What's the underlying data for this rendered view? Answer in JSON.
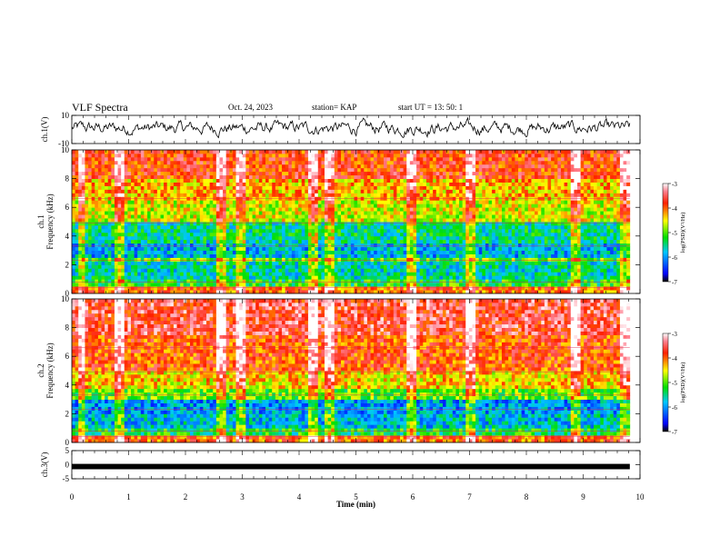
{
  "header": {
    "title": "VLF Spectra",
    "date": "Oct. 24, 2023",
    "station": "station= KAP",
    "start": "start  UT  =   13: 50: 1"
  },
  "chart_data": [
    {
      "type": "line",
      "panel": "ch1-waveform",
      "ylabel": "ch.1(V)",
      "ylim": [
        -10,
        10
      ],
      "yticks": [
        "10",
        "-10"
      ],
      "xlim": [
        0,
        10
      ],
      "x_end": 9.82,
      "series_note_values": [
        0,
        3,
        -2,
        4,
        -1,
        2,
        -3,
        1,
        5,
        -2,
        0,
        3,
        -4,
        2,
        1,
        -1,
        4,
        -3,
        2,
        0
      ],
      "color": "#000000"
    },
    {
      "type": "heatmap",
      "panel": "ch1-spectrogram",
      "ylabel": "ch.1\nFrequency (kHz)",
      "ylabel_line1": "ch.1",
      "ylabel_line2": "Frequency (kHz)",
      "ylim": [
        0,
        10
      ],
      "yticks": [
        "0",
        "2",
        "4",
        "6",
        "8",
        "10"
      ],
      "xlim": [
        0,
        10
      ],
      "x_end": 9.82,
      "colorbar": {
        "label": "log(PSD)(V²/Hz)",
        "range": [
          -7,
          -3
        ],
        "ticks": [
          "-3",
          "-4",
          "-5",
          "-6",
          "-7"
        ]
      },
      "bands_log_psd": [
        {
          "f": [
            0,
            0.6
          ],
          "level": -4.0
        },
        {
          "f": [
            0.6,
            1.0
          ],
          "level": -5.2
        },
        {
          "f": [
            1.0,
            2.2
          ],
          "level": -5.6
        },
        {
          "f": [
            2.2,
            2.6
          ],
          "level": -5.0
        },
        {
          "f": [
            2.6,
            3.6
          ],
          "level": -5.9
        },
        {
          "f": [
            3.6,
            4.9
          ],
          "level": -5.5
        },
        {
          "f": [
            4.9,
            6.6
          ],
          "level": -4.6
        },
        {
          "f": [
            6.6,
            8.0
          ],
          "level": -4.3
        },
        {
          "f": [
            8.0,
            10.0
          ],
          "level": -3.8
        }
      ],
      "vertical_bursts_min": [
        0.15,
        0.8,
        2.6,
        2.95,
        4.2,
        4.5,
        5.95,
        7.0,
        8.85,
        9.7
      ]
    },
    {
      "type": "heatmap",
      "panel": "ch2-spectrogram",
      "ylabel": "ch.2\nFrequency (kHz)",
      "ylabel_line1": "ch.2",
      "ylabel_line2": "Frequency (kHz)",
      "ylim": [
        0,
        10
      ],
      "yticks": [
        "0",
        "2",
        "4",
        "6",
        "8",
        "10"
      ],
      "xlim": [
        0,
        10
      ],
      "x_end": 9.82,
      "colorbar": {
        "label": "log(PSD)(V²/Hz)",
        "range": [
          -7,
          -3
        ],
        "ticks": [
          "-3",
          "-4",
          "-5",
          "-6",
          "-7"
        ]
      },
      "bands_log_psd": [
        {
          "f": [
            0,
            0.6
          ],
          "level": -4.0
        },
        {
          "f": [
            0.6,
            1.0
          ],
          "level": -5.3
        },
        {
          "f": [
            1.0,
            2.0
          ],
          "level": -5.8
        },
        {
          "f": [
            2.0,
            3.1
          ],
          "level": -6.0
        },
        {
          "f": [
            3.1,
            3.7
          ],
          "level": -5.0
        },
        {
          "f": [
            3.7,
            5.0
          ],
          "level": -4.4
        },
        {
          "f": [
            5.0,
            7.5
          ],
          "level": -3.9
        },
        {
          "f": [
            7.5,
            10.0
          ],
          "level": -3.6
        }
      ],
      "vertical_bursts_min": [
        0.15,
        0.8,
        2.6,
        2.95,
        4.2,
        4.5,
        5.95,
        7.0,
        8.85,
        9.7
      ]
    },
    {
      "type": "line",
      "panel": "ch3-waveform",
      "ylabel": "ch.3(V)",
      "ylim": [
        -5,
        5
      ],
      "yticks": [
        "5",
        "0",
        "-5"
      ],
      "xlim": [
        0,
        10
      ],
      "x_end": 9.82,
      "series_note_values": [
        -0.3,
        0.3
      ],
      "color": "#000000"
    }
  ],
  "xaxis": {
    "label": "Time (min)",
    "ticks": [
      "0",
      "1",
      "2",
      "3",
      "4",
      "5",
      "6",
      "7",
      "8",
      "9",
      "10"
    ]
  }
}
